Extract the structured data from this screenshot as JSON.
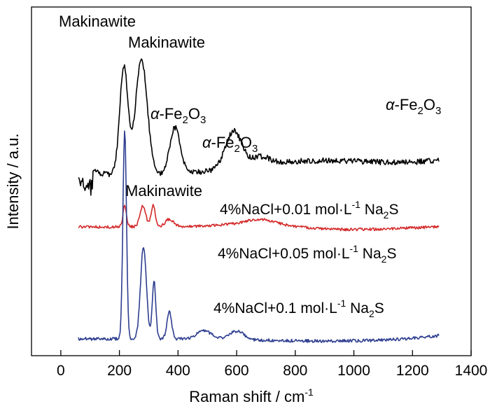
{
  "chart_data": {
    "type": "line",
    "title": "",
    "xlabel": "Raman shift / cm",
    "xlabel_sup": "-1",
    "ylabel": "Intensity / a.u.",
    "xlim": [
      -100,
      1400
    ],
    "x_ticks": [
      "0",
      "200",
      "400",
      "600",
      "800",
      "1000",
      "1200",
      "1400"
    ],
    "y_ticks_shown": false,
    "grid": false,
    "legend": "none",
    "series": [
      {
        "key": "top",
        "label": {
          "pre": "4%NaCl+0.01 mol·L",
          "sup": "-1",
          "mid": " Na",
          "sub": "2",
          "post": "S"
        },
        "color": "#000000",
        "x_range": [
          60,
          1290
        ],
        "peaks": [
          {
            "pos": 215,
            "height": 0.8
          },
          {
            "pos": 275,
            "height": 0.85
          },
          {
            "pos": 390,
            "height": 0.34
          },
          {
            "pos": 590,
            "height": 0.27
          },
          {
            "pos": 680,
            "height": 0.06
          }
        ]
      },
      {
        "key": "middle",
        "label": {
          "pre": "4%NaCl+0.05 mol·L",
          "sup": "-1",
          "mid": " Na",
          "sub": "2",
          "post": "S"
        },
        "color": "#d42a2a",
        "x_range": [
          60,
          1290
        ],
        "peaks": [
          {
            "pos": 218,
            "height": 0.33
          },
          {
            "pos": 280,
            "height": 0.33
          },
          {
            "pos": 315,
            "height": 0.35
          },
          {
            "pos": 370,
            "height": 0.12
          },
          {
            "pos": 680,
            "height": 0.07
          }
        ]
      },
      {
        "key": "bottom",
        "label": {
          "pre": "4%NaCl+0.1 mol·L",
          "sup": "-1",
          "mid": " Na",
          "sub": "2",
          "post": "S"
        },
        "color": "#2e3e90",
        "x_range": [
          60,
          1290
        ],
        "peaks": [
          {
            "pos": 218,
            "height": 1.0
          },
          {
            "pos": 282,
            "height": 0.44
          },
          {
            "pos": 318,
            "height": 0.28
          },
          {
            "pos": 370,
            "height": 0.13
          },
          {
            "pos": 490,
            "height": 0.04
          },
          {
            "pos": 600,
            "height": 0.04
          }
        ]
      }
    ],
    "annotations": [
      {
        "key": "mak1",
        "text": "Makinawite"
      },
      {
        "key": "mak2",
        "text": "Makinawite"
      },
      {
        "key": "fe1",
        "pre": "α",
        "text": "-Fe",
        "sub": "2",
        "post": "O",
        "sub2": "3"
      },
      {
        "key": "fe2",
        "pre": "α",
        "text": "-Fe",
        "sub": "2",
        "post": "O",
        "sub2": "3"
      },
      {
        "key": "fe3",
        "pre": "α",
        "text": "-Fe",
        "sub": "2",
        "post": "O",
        "sub2": "3"
      },
      {
        "key": "mak3",
        "text": "Makinawite"
      }
    ]
  }
}
